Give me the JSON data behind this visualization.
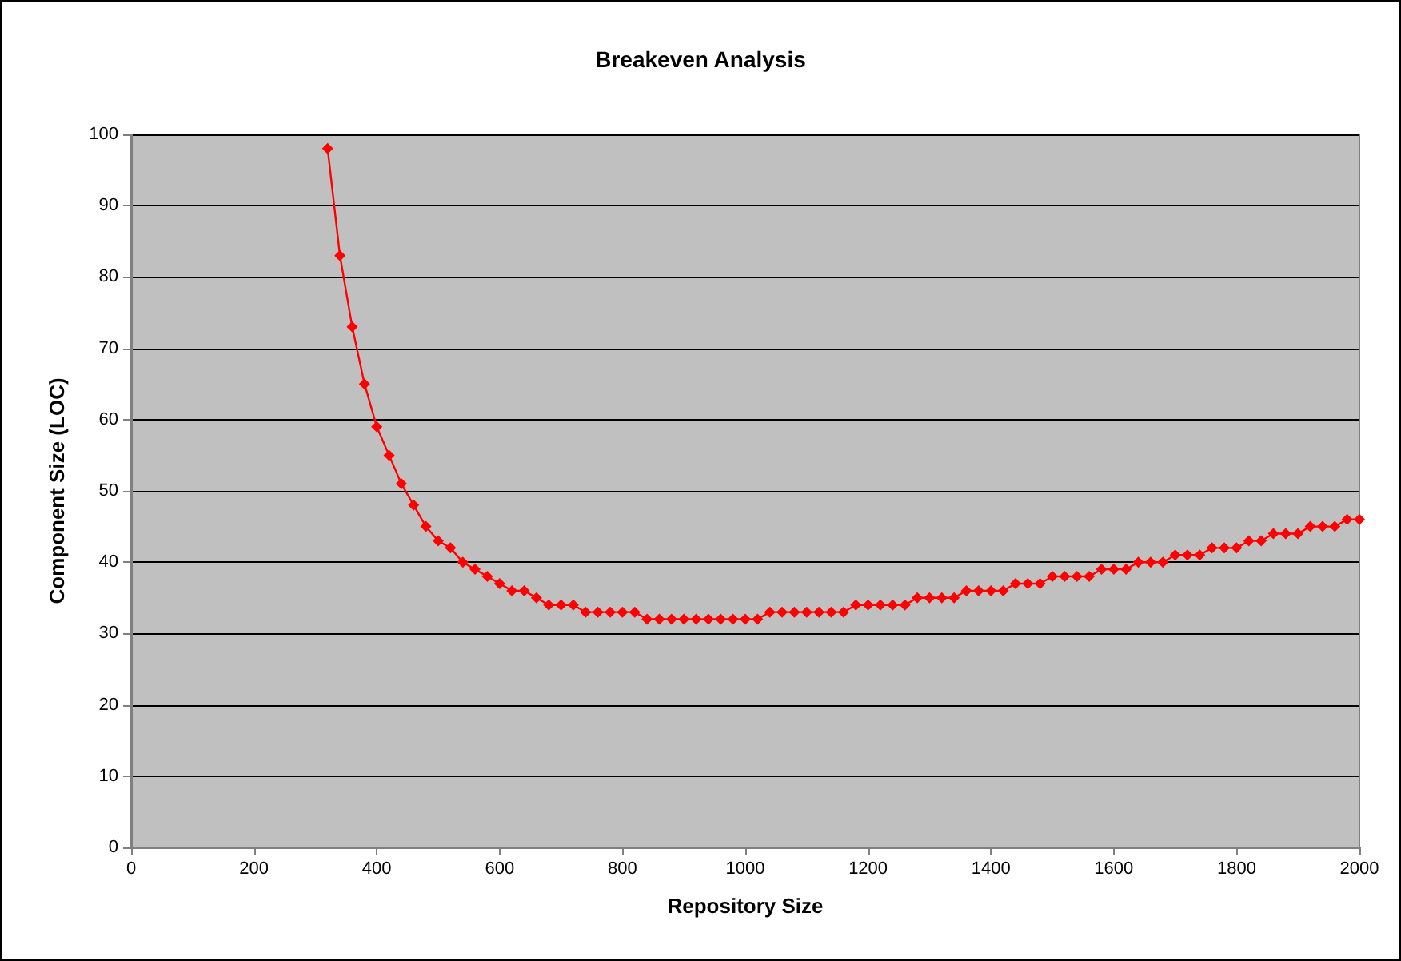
{
  "chart_data": {
    "type": "line",
    "title": "Breakeven Analysis",
    "xlabel": "Repository Size",
    "ylabel": "Component Size (LOC)",
    "x": [
      320,
      340,
      360,
      380,
      400,
      420,
      440,
      460,
      480,
      500,
      520,
      540,
      560,
      580,
      600,
      620,
      640,
      660,
      680,
      700,
      720,
      740,
      760,
      780,
      800,
      820,
      840,
      860,
      880,
      900,
      920,
      940,
      960,
      980,
      1000,
      1020,
      1040,
      1060,
      1080,
      1100,
      1120,
      1140,
      1160,
      1180,
      1200,
      1220,
      1240,
      1260,
      1280,
      1300,
      1320,
      1340,
      1360,
      1380,
      1400,
      1420,
      1440,
      1460,
      1480,
      1500,
      1520,
      1540,
      1560,
      1580,
      1600,
      1620,
      1640,
      1660,
      1680,
      1700,
      1720,
      1740,
      1760,
      1780,
      1800,
      1820,
      1840,
      1860,
      1880,
      1900,
      1920,
      1940,
      1960,
      1980,
      2000
    ],
    "series": [
      {
        "color": "#ff0000",
        "values": [
          98,
          83,
          73,
          65,
          59,
          55,
          51,
          48,
          45,
          43,
          42,
          40,
          39,
          38,
          37,
          36,
          36,
          35,
          34,
          34,
          34,
          33,
          33,
          33,
          33,
          33,
          32,
          32,
          32,
          32,
          32,
          32,
          32,
          32,
          32,
          32,
          33,
          33,
          33,
          33,
          33,
          33,
          33,
          34,
          34,
          34,
          34,
          34,
          35,
          35,
          35,
          35,
          36,
          36,
          36,
          36,
          37,
          37,
          37,
          38,
          38,
          38,
          38,
          39,
          39,
          39,
          40,
          40,
          40,
          41,
          41,
          41,
          42,
          42,
          42,
          43,
          43,
          44,
          44,
          44,
          45,
          45,
          45,
          46,
          46
        ]
      }
    ],
    "xlim": [
      0,
      2000
    ],
    "xticks": [
      0,
      200,
      400,
      600,
      800,
      1000,
      1200,
      1400,
      1600,
      1800,
      2000
    ],
    "ylim": [
      0,
      100
    ],
    "yticks": [
      0,
      10,
      20,
      30,
      40,
      50,
      60,
      70,
      80,
      90,
      100
    ],
    "grid": "y",
    "marker": "diamond",
    "line_style": "solid"
  }
}
